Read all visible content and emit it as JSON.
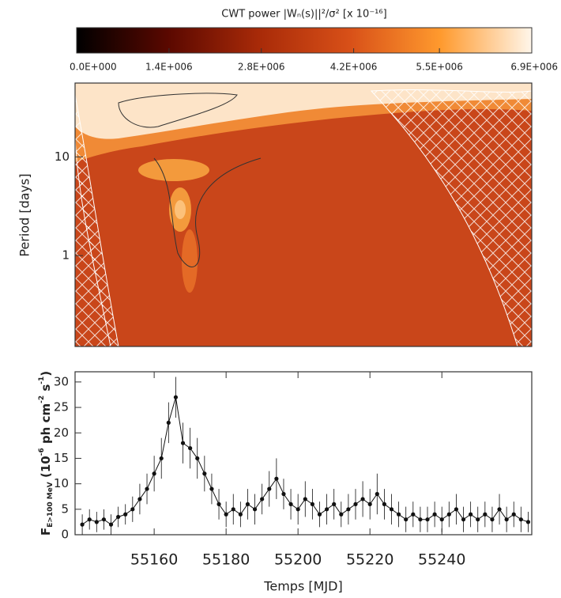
{
  "chart_data": [
    {
      "type": "heatmap",
      "title": "CWT power  |Wₙ(s)||²/σ²   [x 10⁻¹⁶]",
      "ylabel": "Period [days]",
      "log_y": true,
      "ylim": [
        0.12,
        56
      ],
      "yticks": [
        1,
        10
      ],
      "colorbar": {
        "clim": [
          0,
          6900000
        ],
        "colors": [
          "#000000",
          "#5a0800",
          "#a82a08",
          "#d85018",
          "#ff9a2e",
          "#fff6ea"
        ],
        "ticks": [
          {
            "value": 0,
            "label": "0.0E+000"
          },
          {
            "value": 1400000,
            "label": "1.4E+006"
          },
          {
            "value": 2800000,
            "label": "2.8E+006"
          },
          {
            "value": 4200000,
            "label": "4.2E+006"
          },
          {
            "value": 5500000,
            "label": "5.5E+006"
          },
          {
            "value": 6900000,
            "label": "6.9E+006"
          }
        ]
      }
    },
    {
      "type": "scatter",
      "xlabel": "Temps [MJD]",
      "ylabel_parts": [
        "F",
        "E>100 MeV",
        " (10",
        "-6",
        " ph cm",
        "-2",
        " s",
        "-1",
        ")"
      ],
      "color": "#111111",
      "xlim": [
        55138,
        55265
      ],
      "xticks": [
        55160,
        55180,
        55200,
        55220,
        55240
      ],
      "ylim": [
        0,
        32
      ],
      "yticks": [
        0,
        5,
        10,
        15,
        20,
        25,
        30
      ],
      "x": [
        55140,
        55142,
        55144,
        55146,
        55148,
        55150,
        55152,
        55154,
        55156,
        55158,
        55160,
        55162,
        55164,
        55166,
        55168,
        55170,
        55172,
        55174,
        55176,
        55178,
        55180,
        55182,
        55184,
        55186,
        55188,
        55190,
        55192,
        55194,
        55196,
        55198,
        55200,
        55202,
        55204,
        55206,
        55208,
        55210,
        55212,
        55214,
        55216,
        55218,
        55220,
        55222,
        55224,
        55226,
        55228,
        55230,
        55232,
        55234,
        55236,
        55238,
        55240,
        55242,
        55244,
        55246,
        55248,
        55250,
        55252,
        55254,
        55256,
        55258,
        55260,
        55262,
        55264
      ],
      "values": [
        2,
        3,
        2.5,
        3,
        2,
        3.5,
        4,
        5,
        7,
        9,
        12,
        15,
        22,
        27,
        18,
        17,
        15,
        12,
        9,
        6,
        4,
        5,
        4,
        6,
        5,
        7,
        9,
        11,
        8,
        6,
        5,
        7,
        6,
        4,
        5,
        6,
        4,
        5,
        6,
        7,
        6,
        8,
        6,
        5,
        4,
        3,
        4,
        3,
        3,
        4,
        3,
        4,
        5,
        3,
        4,
        3,
        4,
        3,
        5,
        3,
        4,
        3,
        2.5
      ],
      "errors": [
        2,
        2,
        2,
        2,
        2,
        2,
        2,
        2.5,
        3,
        3,
        3.5,
        4,
        4,
        4,
        4,
        4,
        4,
        3.5,
        3,
        3,
        2.5,
        3,
        2.5,
        3,
        3,
        3,
        3.5,
        4,
        3,
        3,
        3,
        3.5,
        3,
        2.5,
        3,
        3,
        2.5,
        3,
        3,
        3.5,
        3,
        4,
        3,
        3,
        2.5,
        2.5,
        2.5,
        2.5,
        2.5,
        2.5,
        2.5,
        2.5,
        3,
        2.5,
        2.5,
        2.5,
        2.5,
        2.5,
        3,
        2.5,
        2.5,
        2.5,
        2
      ]
    }
  ]
}
